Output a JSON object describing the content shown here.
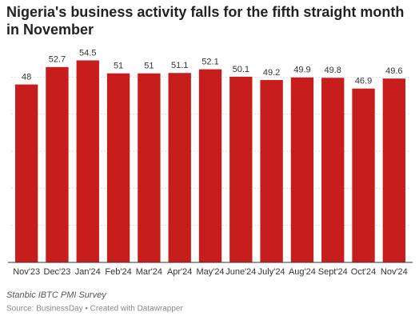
{
  "chart_data": {
    "type": "bar",
    "title": "Nigeria's business activity falls for the fifth straight month in November",
    "categories": [
      "Nov'23",
      "Dec'23",
      "Jan'24",
      "Feb'24",
      "Mar'24",
      "Apr'24",
      "May'24",
      "June'24",
      "July'24",
      "Aug'24",
      "Sept'24",
      "Oct'24",
      "Nov'24"
    ],
    "values": [
      48,
      52.7,
      54.5,
      51,
      51,
      51.1,
      52.1,
      50.1,
      49.2,
      49.9,
      49.8,
      46.9,
      49.6
    ],
    "color": "#c71e1d",
    "ylim": [
      0,
      60
    ],
    "yticks": [
      10,
      20,
      30,
      40,
      50
    ],
    "grid": true,
    "notes": "Stanbic IBTC PMI Survey",
    "source": "Source: BusinessDay • Created with Datawrapper"
  }
}
